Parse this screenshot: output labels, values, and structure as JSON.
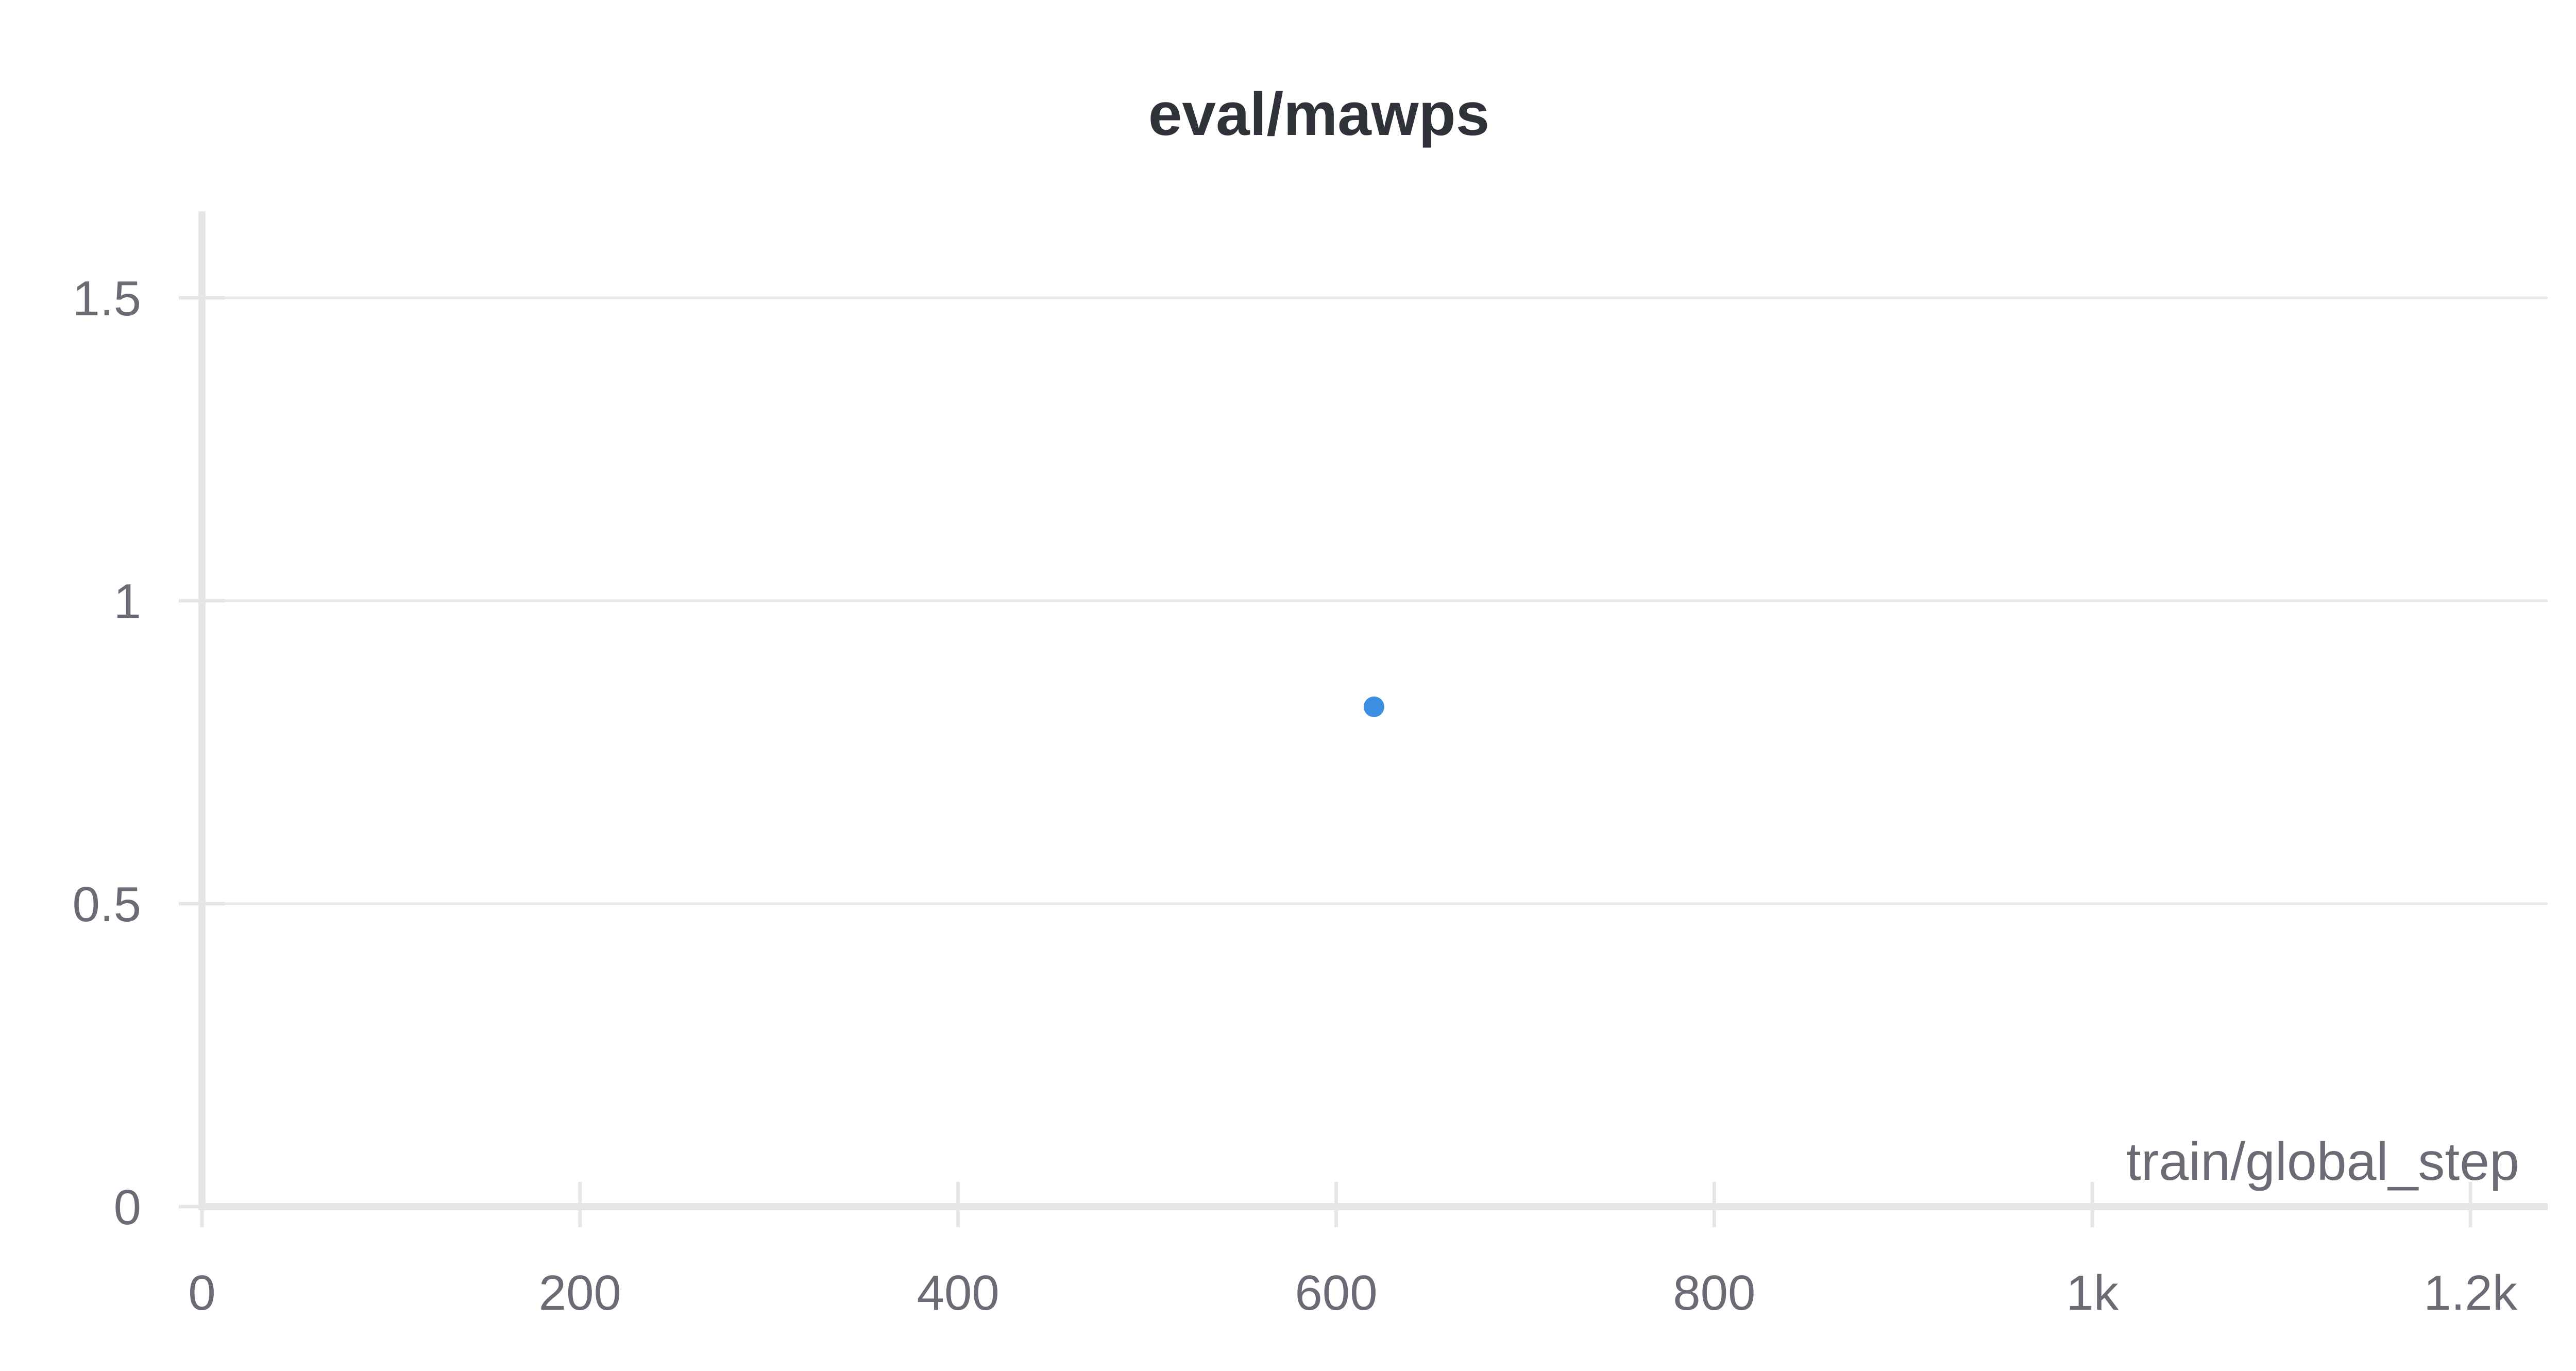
{
  "chart_data": {
    "type": "scatter",
    "title": "eval/mawps",
    "xlabel": "train/global_step",
    "ylabel": "",
    "xlim": [
      0,
      1240
    ],
    "ylim": [
      0,
      1.65
    ],
    "x_ticks": [
      {
        "value": 0,
        "label": "0"
      },
      {
        "value": 200,
        "label": "200"
      },
      {
        "value": 400,
        "label": "400"
      },
      {
        "value": 600,
        "label": "600"
      },
      {
        "value": 800,
        "label": "800"
      },
      {
        "value": 1000,
        "label": "1k"
      },
      {
        "value": 1200,
        "label": "1.2k"
      }
    ],
    "y_ticks": [
      {
        "value": 0,
        "label": "0"
      },
      {
        "value": 0.5,
        "label": "0.5"
      },
      {
        "value": 1,
        "label": "1"
      },
      {
        "value": 1.5,
        "label": "1.5"
      }
    ],
    "grid": "horizontal",
    "series": [
      {
        "color": "#3b8ee0",
        "points": [
          {
            "x": 620,
            "y": 0.825
          }
        ]
      }
    ]
  }
}
